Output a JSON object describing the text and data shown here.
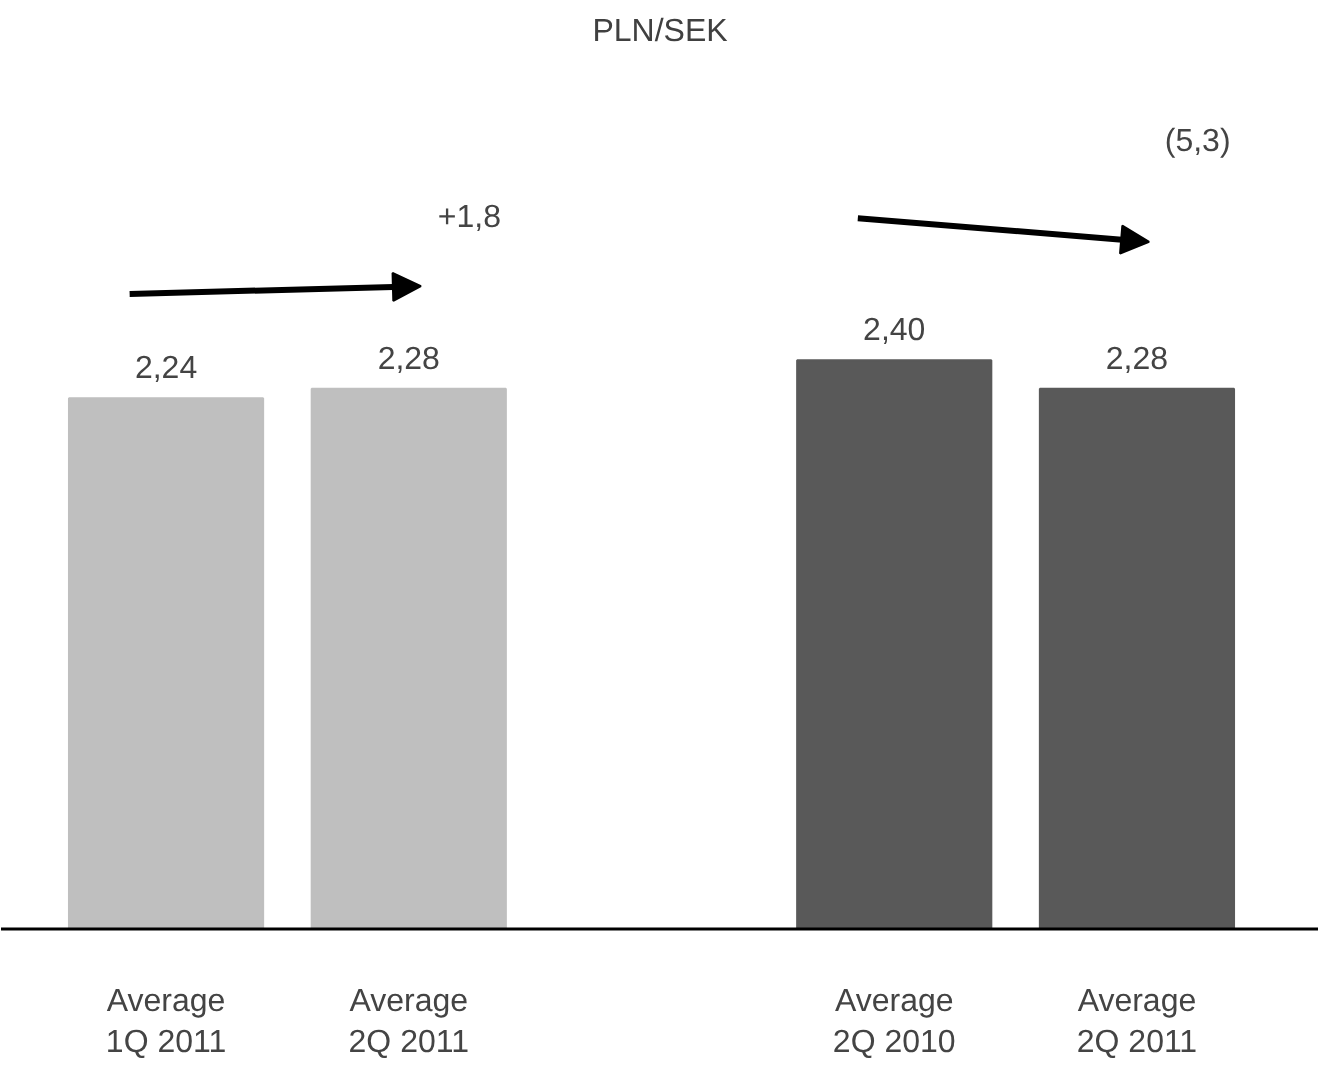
{
  "chart_data": {
    "type": "bar",
    "title": "PLN/SEK",
    "categories": [
      "Average\n1Q 2011",
      "Average\n2Q 2011",
      null,
      "Average\n2Q 2010",
      "Average\n2Q 2011"
    ],
    "values": [
      2.24,
      2.28,
      null,
      2.4,
      2.28
    ],
    "colors": [
      "#bfbfbf",
      "#bfbfbf",
      "#bfbfbf",
      "#595959",
      "#595959"
    ],
    "value_labels": [
      "2,24",
      "2,28",
      null,
      "2,40",
      "2,28"
    ],
    "tick_labels": "x",
    "grid": false,
    "annotations": [
      "+1,8",
      "(5,3)"
    ]
  }
}
